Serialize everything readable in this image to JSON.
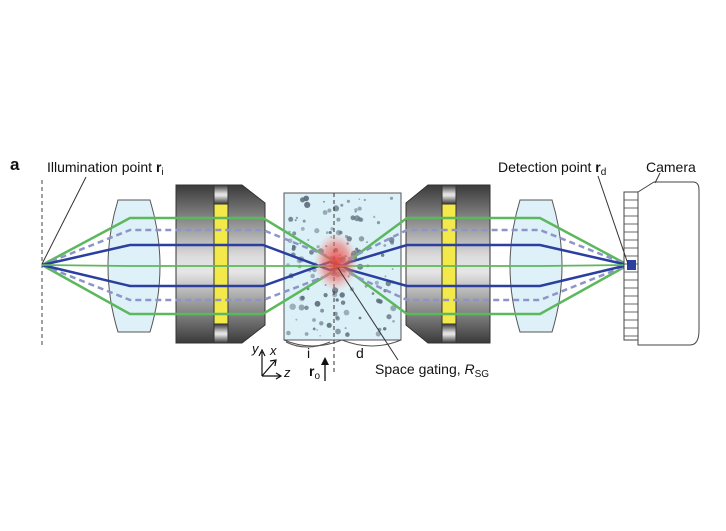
{
  "panel_letter": "a",
  "illumination": {
    "prefix": "Illumination point ",
    "vec": "r",
    "sub": "i"
  },
  "detection": {
    "prefix": "Detection point ",
    "vec": "r",
    "sub": "d"
  },
  "camera_label": "Camera",
  "sample_labels": {
    "incident": "i",
    "detected": "d"
  },
  "position": {
    "vec": "r",
    "sub": "o"
  },
  "space_gating": {
    "prefix": "Space gating, ",
    "symbol": "R",
    "sub": "SG"
  },
  "axes": {
    "y": "y",
    "x": "x",
    "z": "z"
  },
  "colors": {
    "green_ray": "#5cb85c",
    "blue_ray": "#2b3f9e",
    "dashed_ray": "#8d94c9",
    "lens_fill": "#dff1f8",
    "filter_yellow": "#f3e94a",
    "sample_fill": "#dcf0f7",
    "focus_red": "#e8413c"
  }
}
